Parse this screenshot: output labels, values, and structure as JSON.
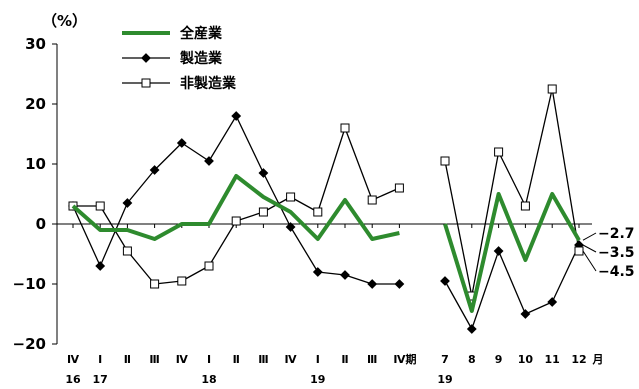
{
  "chart_data": {
    "type": "line",
    "unit_label": "（%）",
    "ylim": [
      -20,
      30
    ],
    "yticks": [
      "30",
      "20",
      "10",
      "0",
      "−10",
      "−20"
    ],
    "ytick_values": [
      30,
      20,
      10,
      0,
      -10,
      -20
    ],
    "legend_placement": "top-left",
    "categories": [
      "Ⅳ",
      "Ⅰ",
      "Ⅱ",
      "Ⅲ",
      "Ⅳ",
      "Ⅰ",
      "Ⅱ",
      "Ⅲ",
      "Ⅳ",
      "Ⅰ",
      "Ⅱ",
      "Ⅲ",
      "Ⅳ",
      "7",
      "8",
      "9",
      "10",
      "11",
      "12"
    ],
    "period_suffix_label": "期",
    "month_suffix_label": "月",
    "year_labels": [
      {
        "label": "16",
        "category_index": 0
      },
      {
        "label": "17",
        "category_index": 1
      },
      {
        "label": "18",
        "category_index": 5
      },
      {
        "label": "19",
        "category_index": 9
      },
      {
        "label": "19",
        "category_index": 13
      }
    ],
    "segments": [
      [
        0,
        12
      ],
      [
        13,
        18
      ]
    ],
    "series": [
      {
        "name": "全産業",
        "color": "#2e8b2e",
        "style": "thick",
        "values": [
          3.0,
          -1.0,
          -1.0,
          -2.5,
          0.0,
          0.0,
          8.0,
          4.5,
          2.0,
          -2.5,
          4.0,
          -2.5,
          -1.5,
          0.0,
          -14.5,
          5.0,
          -6.0,
          5.0,
          -2.7
        ]
      },
      {
        "name": "製造業",
        "color": "#000000",
        "style": "diamond",
        "values": [
          3.0,
          -7.0,
          3.5,
          9.0,
          13.5,
          10.5,
          18.0,
          8.5,
          -0.5,
          -8.0,
          -8.5,
          -10.0,
          -10.0,
          -9.5,
          -17.5,
          -4.5,
          -15.0,
          -13.0,
          -3.5
        ]
      },
      {
        "name": "非製造業",
        "color": "#000000",
        "style": "square",
        "values": [
          3.0,
          3.0,
          -4.5,
          -10.0,
          -9.5,
          -7.0,
          0.5,
          2.0,
          4.5,
          2.0,
          16.0,
          4.0,
          6.0,
          10.5,
          -12.0,
          12.0,
          3.0,
          22.5,
          -4.5
        ]
      }
    ],
    "end_labels": [
      "−2.7",
      "−3.5",
      "−4.5"
    ]
  }
}
